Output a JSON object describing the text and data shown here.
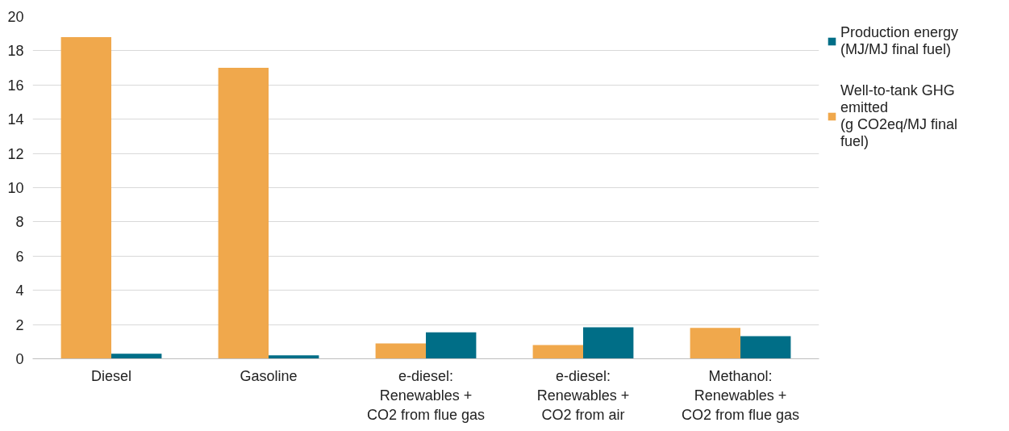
{
  "chart_data": {
    "type": "bar",
    "categories": [
      "Diesel",
      "Gasoline",
      "e-diesel:\nRenewables +\nCO2 from flue gas",
      "e-diesel:\nRenewables +\nCO2 from air",
      "Methanol:\nRenewables +\nCO2 from flue gas"
    ],
    "series": [
      {
        "name": "Well-to-tank GHG\nemitted\n(g CO2eq/MJ final\nfuel)",
        "color": "#f0a84c",
        "values": [
          18.8,
          17.0,
          0.9,
          0.8,
          1.8
        ]
      },
      {
        "name": "Production energy\n(MJ/MJ final fuel)",
        "color": "#006e87",
        "values": [
          0.3,
          0.2,
          1.55,
          1.84,
          1.32
        ]
      }
    ],
    "ylim": [
      0,
      20
    ],
    "yticks": [
      0,
      2,
      4,
      6,
      8,
      10,
      12,
      14,
      16,
      18,
      20
    ],
    "grid": "y",
    "legend": "right"
  }
}
